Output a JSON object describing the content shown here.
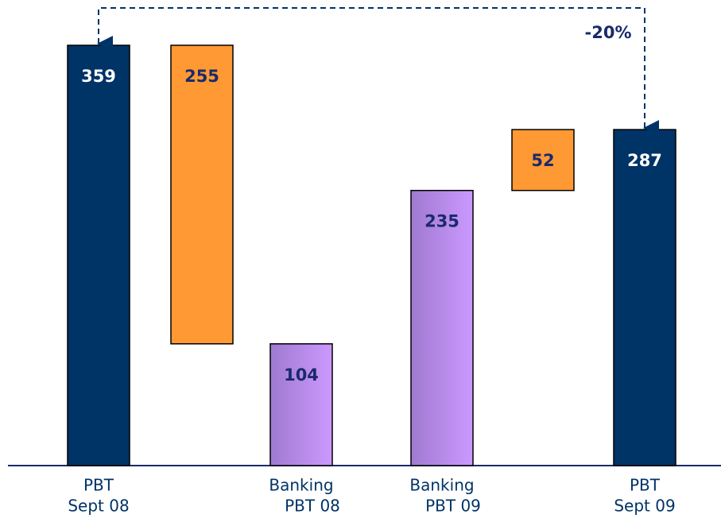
{
  "chart_data": {
    "type": "waterfall",
    "categories": [
      [
        "PBT",
        "Sept 08"
      ],
      null,
      [
        "Banking",
        "PBT 08"
      ],
      [
        "Banking",
        "PBT 09"
      ],
      null,
      [
        "PBT",
        "Sept 09"
      ]
    ],
    "values": [
      359,
      255,
      104,
      235,
      52,
      287
    ],
    "measure": [
      "total",
      "decrease",
      "total",
      "total",
      "increase",
      "total"
    ],
    "colors": [
      "#003366",
      "#ff9933",
      "#b48ae6",
      "#b48ae6",
      "#ff9933",
      "#003366"
    ],
    "annotation": "-20%"
  }
}
